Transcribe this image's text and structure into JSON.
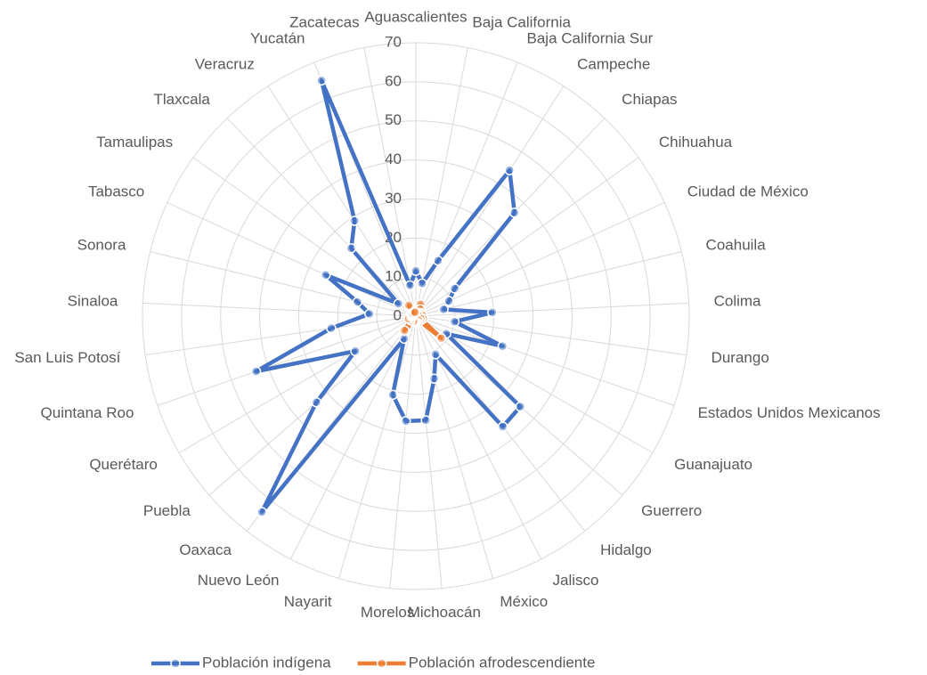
{
  "chart_data": {
    "type": "radar",
    "categories": [
      "Aguascalientes",
      "Baja California",
      "Baja California Sur",
      "Campeche",
      "Chiapas",
      "Chihuahua",
      "Ciudad de México",
      "Coahuila",
      "Colima",
      "Durango",
      "Estados Unidos Mexicanos",
      "Guanajuato",
      "Guerrero",
      "Hidalgo",
      "Jalisco",
      "México",
      "Michoacán",
      "Morelos",
      "Nayarit",
      "Nuevo León",
      "Oaxaca",
      "Puebla",
      "Querétaro",
      "Quintana Roo",
      "San Luis Potosí",
      "Sinaloa",
      "Sonora",
      "Tabasco",
      "Tamaulipas",
      "Tlaxcala",
      "Veracruz",
      "Yucatán",
      "Zacatecas"
    ],
    "series": [
      {
        "name": "Población indígena",
        "color": "#4472c4",
        "values": [
          11.6,
          8.5,
          15.3,
          44.4,
          36.6,
          12.2,
          9.3,
          7.3,
          19.6,
          10.0,
          23.5,
          9.0,
          35.4,
          36.0,
          11.0,
          16.7,
          26.8,
          27.0,
          21.0,
          6.5,
          63.8,
          33.7,
          17.9,
          43.3,
          21.9,
          11.9,
          15.4,
          25.4,
          5.5,
          24.0,
          29.0,
          65.0,
          8.0
        ]
      },
      {
        "name": "Población afrodescendiente",
        "color": "#ed7d31",
        "values": [
          1.6,
          1.5,
          3.3,
          2.1,
          1.1,
          1.1,
          1.8,
          1.5,
          1.8,
          1.0,
          2.0,
          1.5,
          8.6,
          1.6,
          1.2,
          1.9,
          1.6,
          1.6,
          1.5,
          1.4,
          4.7,
          1.7,
          1.3,
          2.0,
          1.1,
          1.0,
          1.2,
          1.4,
          1.2,
          1.1,
          3.3,
          1.2,
          1.0
        ]
      }
    ],
    "ylim": [
      0,
      70
    ],
    "yticks": [
      0,
      10,
      20,
      30,
      40,
      50,
      60,
      70
    ],
    "grid": true,
    "legend": "bottom"
  }
}
